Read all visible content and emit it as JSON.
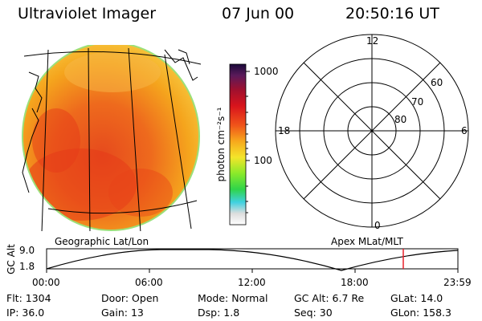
{
  "header": {
    "instrument": "Ultraviolet Imager",
    "date": "07 Jun 00",
    "time": "20:50:16 UT"
  },
  "colorbar": {
    "unit_label": "photon cm⁻²s⁻¹",
    "ticks": [
      "1000",
      "100"
    ],
    "scale": "log"
  },
  "image_panel": {
    "caption": "Geographic Lat/Lon",
    "colors": {
      "disk_fill": "#f4a51c",
      "rim": "#9be07a",
      "hotspot": "#e53a17"
    }
  },
  "polar_plot": {
    "caption": "Apex MLat/MLT",
    "mlt_labels": {
      "top": "12",
      "left": "18",
      "right": "6",
      "bottom": "0"
    },
    "lat_labels": [
      "60",
      "70",
      "80"
    ]
  },
  "altitude_plot": {
    "y_label": "GC Alt",
    "y_ticks": [
      "9.0",
      "1.8"
    ],
    "x_ticks": [
      "00:00",
      "06:00",
      "12:00",
      "18:00",
      "23:59"
    ],
    "marker_color": "#e8202a"
  },
  "status": {
    "col1": [
      {
        "key": "Flt:",
        "val": "1304"
      },
      {
        "key": "IP:",
        "val": "36.0"
      }
    ],
    "col2": [
      {
        "key": "Door:",
        "val": "Open"
      },
      {
        "key": "Gain:",
        "val": "13"
      }
    ],
    "col3": [
      {
        "key": "Mode:",
        "val": "Normal"
      },
      {
        "key": "Dsp:",
        "val": "1.8"
      }
    ],
    "col4": [
      {
        "key": "GC Alt:",
        "val": "6.7 Re"
      },
      {
        "key": "Seq:",
        "val": "30"
      }
    ],
    "col5": [
      {
        "key": "GLat:",
        "val": "14.0"
      },
      {
        "key": "GLon:",
        "val": "158.3"
      }
    ]
  }
}
